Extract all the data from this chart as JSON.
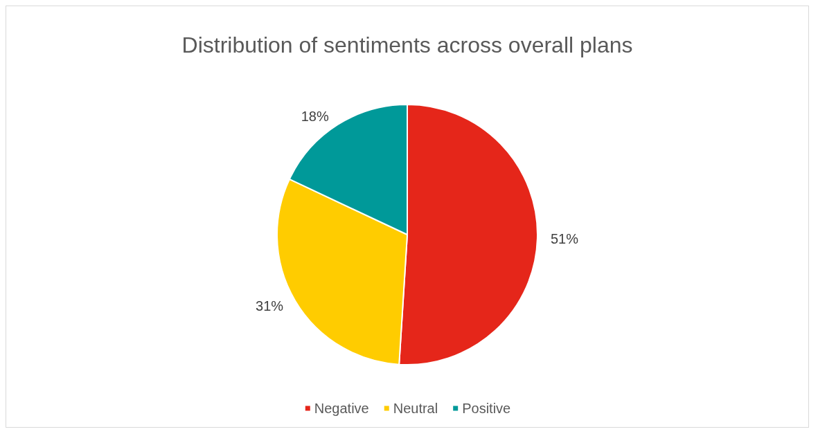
{
  "chart_data": {
    "type": "pie",
    "title": "Distribution of sentiments across overall plans",
    "categories": [
      "Negative",
      "Neutral",
      "Positive"
    ],
    "values": [
      51,
      31,
      18
    ],
    "value_labels": [
      "51%",
      "31%",
      "18%"
    ],
    "colors": [
      "#e5261a",
      "#ffcc00",
      "#009999"
    ],
    "legend": "bottom"
  }
}
